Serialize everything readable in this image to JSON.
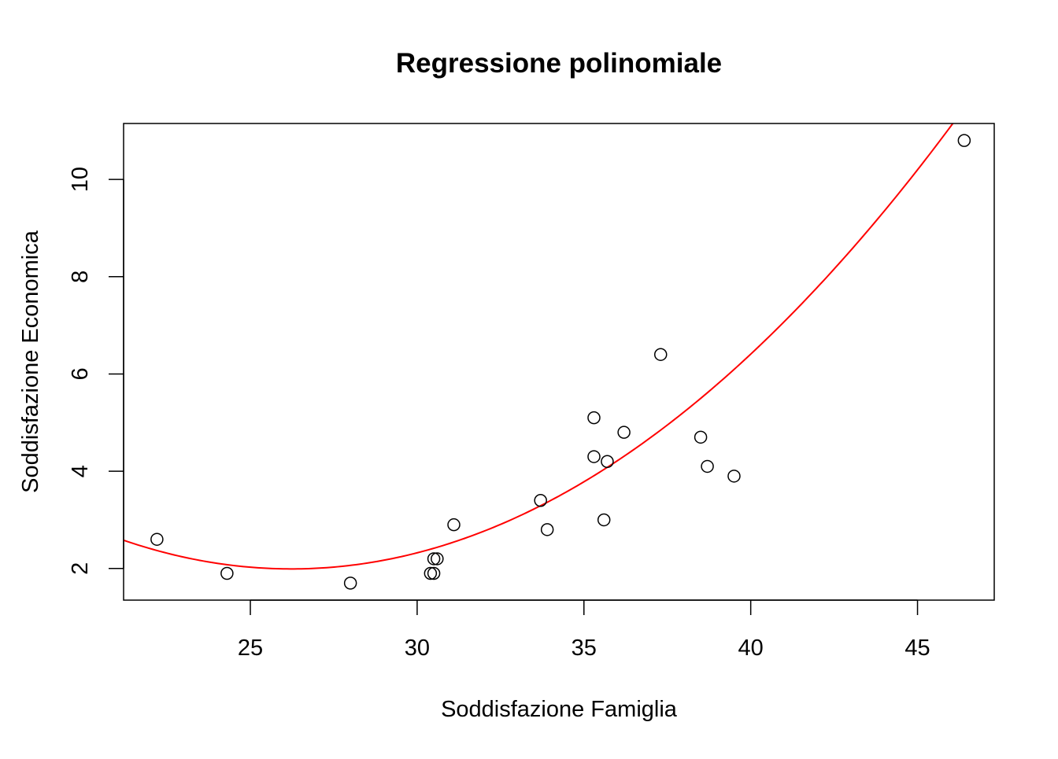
{
  "chart_data": {
    "type": "scatter",
    "title": "Regressione polinomiale",
    "xlabel": "Soddisfazione Famiglia",
    "ylabel": "Soddisfazione Economica",
    "xlim": [
      21.2,
      47.3
    ],
    "ylim": [
      1.35,
      11.15
    ],
    "x_ticks": [
      25,
      30,
      35,
      40,
      45
    ],
    "y_ticks": [
      2,
      4,
      6,
      8,
      10
    ],
    "grid": false,
    "series": [
      {
        "type": "scatter",
        "marker": "open-circle",
        "color": "#000000",
        "points": [
          [
            22.2,
            2.6
          ],
          [
            24.3,
            1.9
          ],
          [
            28.0,
            1.7
          ],
          [
            30.4,
            1.9
          ],
          [
            30.5,
            1.9
          ],
          [
            30.5,
            2.2
          ],
          [
            30.6,
            2.2
          ],
          [
            31.1,
            2.9
          ],
          [
            33.7,
            3.4
          ],
          [
            33.9,
            2.8
          ],
          [
            35.3,
            5.1
          ],
          [
            35.3,
            4.3
          ],
          [
            35.6,
            3.0
          ],
          [
            35.7,
            4.2
          ],
          [
            36.2,
            4.8
          ],
          [
            37.3,
            6.4
          ],
          [
            38.5,
            4.7
          ],
          [
            38.7,
            4.1
          ],
          [
            39.5,
            3.9
          ],
          [
            46.4,
            10.8
          ]
        ]
      },
      {
        "type": "line",
        "color": "#ff0000",
        "fit": "quadratic",
        "coefficients": [
          18.02,
          -1.2221,
          0.023295
        ]
      }
    ]
  }
}
